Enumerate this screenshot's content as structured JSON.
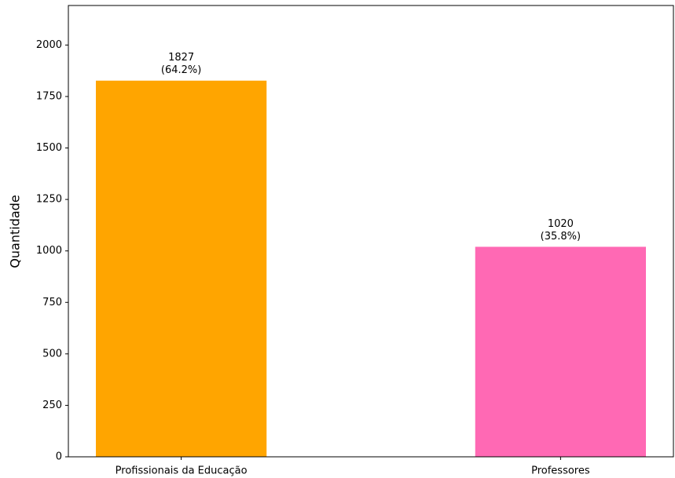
{
  "chart_data": {
    "type": "bar",
    "y_label": "Quantidade",
    "categories": [
      "Profissionais da Educação",
      "Professores"
    ],
    "values": [
      1827,
      1020
    ],
    "percent_labels": [
      "(64.2%)",
      "(35.8%)"
    ],
    "colors": [
      "#ffa500",
      "#ff69b4"
    ],
    "ylim": [
      0,
      2192
    ],
    "yticks": [
      0,
      250,
      500,
      750,
      1000,
      1250,
      1500,
      1750,
      2000
    ],
    "grid": false
  }
}
